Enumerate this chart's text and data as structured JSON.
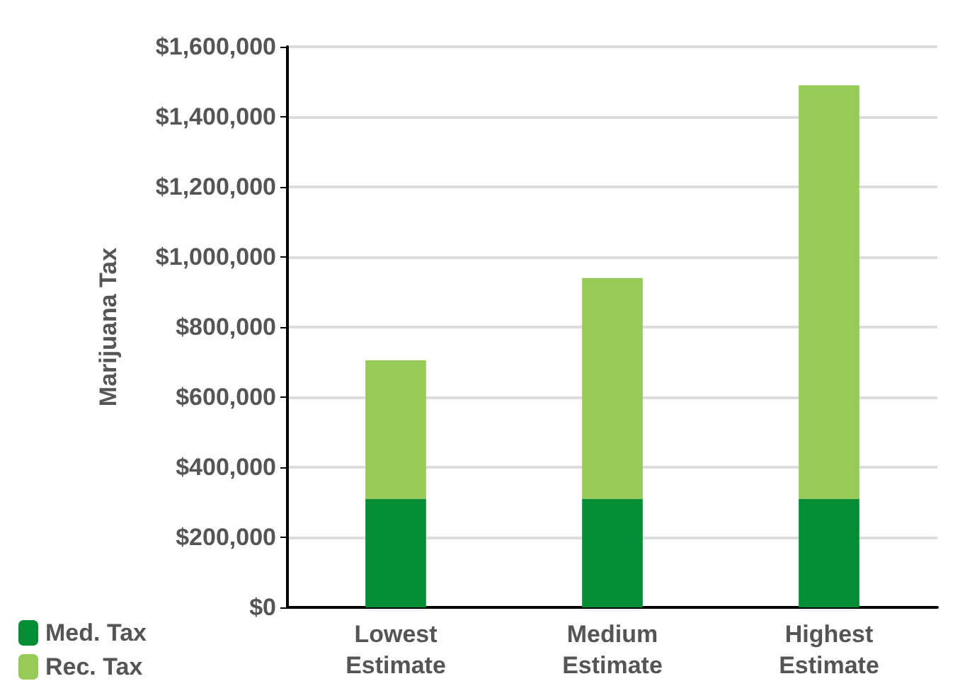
{
  "chart_data": {
    "type": "bar",
    "stacked": true,
    "ylabel": "Marijuana Tax",
    "categories": [
      "Lowest Estimate",
      "Medium Estimate",
      "Highest Estimate"
    ],
    "series": [
      {
        "name": "Med. Tax",
        "color": "#058d35",
        "values": [
          310000,
          310000,
          310000
        ]
      },
      {
        "name": "Rec. Tax",
        "color": "#96cb59",
        "values": [
          395000,
          630000,
          1180000
        ]
      }
    ],
    "ylim": [
      0,
      1600000
    ],
    "yticks": [
      {
        "value": 0,
        "label": "$0"
      },
      {
        "value": 200000,
        "label": "$200,000"
      },
      {
        "value": 400000,
        "label": "$400,000"
      },
      {
        "value": 600000,
        "label": "$600,000"
      },
      {
        "value": 800000,
        "label": "$800,000"
      },
      {
        "value": 1000000,
        "label": "$1,000,000"
      },
      {
        "value": 1200000,
        "label": "$1,200,000"
      },
      {
        "value": 1400000,
        "label": "$1,400,000"
      },
      {
        "value": 1600000,
        "label": "$1,600,000"
      }
    ],
    "grid": "y",
    "legend": "bottom left"
  }
}
